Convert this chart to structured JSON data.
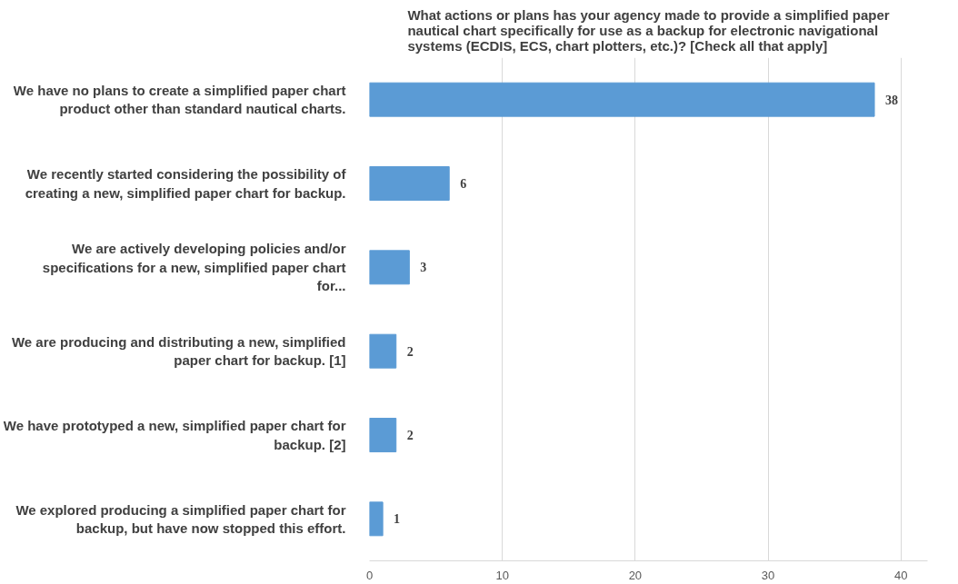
{
  "chart_data": {
    "type": "bar",
    "orientation": "horizontal",
    "title": "What actions or plans has your agency made to provide a simplified paper nautical chart specifically for use as a backup for electronic navigational systems (ECDIS, ECS, chart plotters, etc.)? [Check all that apply]",
    "categories": [
      "We have no plans to create a simplified paper chart product other than standard nautical charts.",
      "We recently started considering the possibility of creating a new, simplified paper chart for backup.",
      "We are actively developing policies and/or specifications for a new, simplified paper chart for...",
      "We are producing and distributing a new, simplified paper chart for backup. [1]",
      "We have prototyped a new, simplified paper chart for backup. [2]",
      "We explored producing a simplified paper chart for backup, but have now stopped this effort."
    ],
    "values": [
      38,
      6,
      3,
      2,
      2,
      1
    ],
    "color": "#5b9bd5",
    "xlim": [
      0,
      42
    ],
    "xticks": [
      0,
      10,
      20,
      30,
      40
    ],
    "grid": "x",
    "data_labels": true
  }
}
